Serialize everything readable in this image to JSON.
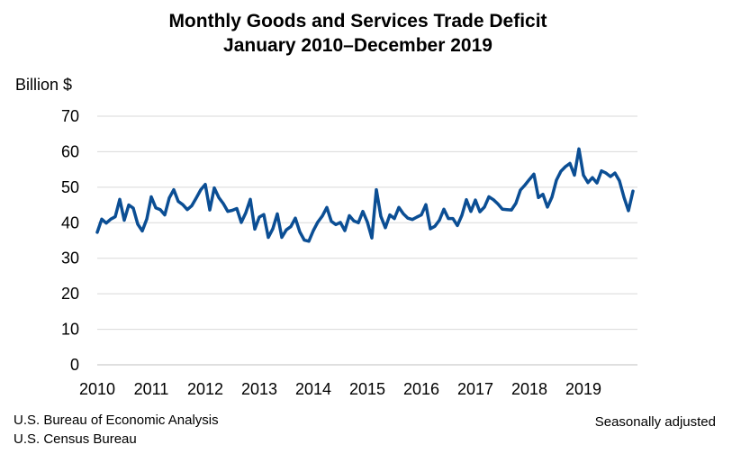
{
  "chart_data": {
    "type": "line",
    "title": "Monthly Goods and Services Trade Deficit",
    "subtitle": "January 2010–December 2019",
    "ylabel": "Billion $",
    "xlabel": "",
    "ylim": [
      0,
      70
    ],
    "yticks": [
      "0",
      "10",
      "20",
      "30",
      "40",
      "50",
      "60",
      "70"
    ],
    "xticks": [
      "2010",
      "2011",
      "2012",
      "2013",
      "2014",
      "2015",
      "2016",
      "2017",
      "2018",
      "2019"
    ],
    "grid": true,
    "series": [
      {
        "name": "Trade deficit",
        "color": "#0b4e94",
        "start": "2010-01",
        "values": [
          37.3,
          41.0,
          39.9,
          41.0,
          41.7,
          46.6,
          40.7,
          45.0,
          44.1,
          39.6,
          37.7,
          41.0,
          47.3,
          44.2,
          43.7,
          42.2,
          47.0,
          49.3,
          46.0,
          45.1,
          43.7,
          44.8,
          47.0,
          49.3,
          50.8,
          43.6,
          49.8,
          47.1,
          45.4,
          43.2,
          43.5,
          44.0,
          40.1,
          42.8,
          46.6,
          38.2,
          41.6,
          42.3,
          35.9,
          38.3,
          42.5,
          35.9,
          38.0,
          38.9,
          41.3,
          37.4,
          35.1,
          34.8,
          37.8,
          40.2,
          41.9,
          44.3,
          40.4,
          39.5,
          40.1,
          37.8,
          42.0,
          40.5,
          40.0,
          43.2,
          40.2,
          35.7,
          49.3,
          41.8,
          38.6,
          42.2,
          41.2,
          44.3,
          42.5,
          41.3,
          40.9,
          41.6,
          42.2,
          45.1,
          38.3,
          39.0,
          40.7,
          43.8,
          41.2,
          41.2,
          39.2,
          42.1,
          46.5,
          43.2,
          46.4,
          43.1,
          44.4,
          47.3,
          46.5,
          45.3,
          43.8,
          43.7,
          43.6,
          45.5,
          49.2,
          50.6,
          52.2,
          53.7,
          47.1,
          48.0,
          44.4,
          47.2,
          52.0,
          54.5,
          55.8,
          56.7,
          53.4,
          60.8,
          53.4,
          51.3,
          52.7,
          51.2,
          54.6,
          54.0,
          53.0,
          54.0,
          51.8,
          47.2,
          43.4,
          48.9
        ]
      }
    ]
  },
  "footer": {
    "source_lines": [
      "U.S. Bureau of Economic Analysis",
      "U.S. Census Bureau"
    ],
    "note": "Seasonally adjusted"
  }
}
